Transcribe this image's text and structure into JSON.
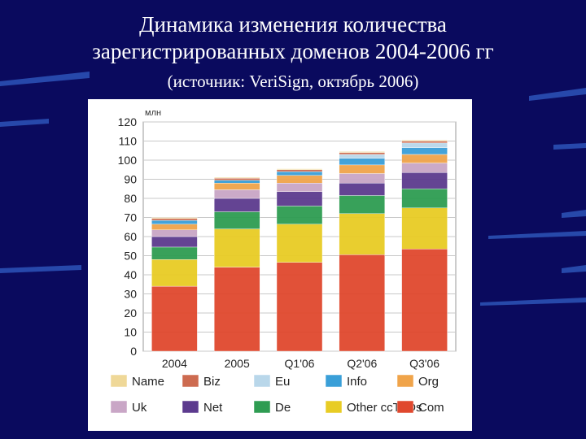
{
  "slide": {
    "title_line1": "Динамика изменения количества",
    "title_line2": "зарегистрированных доменов 2004-2006 гг",
    "source": "(источник: VeriSign, октябрь 2006)"
  },
  "chart_data": {
    "type": "bar",
    "stacked": true,
    "unit_label": "млн",
    "categories": [
      "2004",
      "2005",
      "Q1'06",
      "Q2'06",
      "Q3'06"
    ],
    "ylim": [
      0,
      120
    ],
    "yticks": [
      0,
      10,
      20,
      30,
      40,
      50,
      60,
      70,
      80,
      90,
      100,
      110,
      120
    ],
    "grid": true,
    "legend_position": "bottom",
    "series": [
      {
        "name": "Com",
        "color": "#e0482e",
        "values": [
          34,
          44,
          46.5,
          50.5,
          53.5
        ]
      },
      {
        "name": "Other ccTLDs",
        "color": "#e8cc24",
        "values": [
          14,
          20,
          20,
          21.5,
          21.5
        ]
      },
      {
        "name": "De",
        "color": "#2e9c52",
        "values": [
          6.5,
          9,
          9.5,
          9.5,
          10
        ]
      },
      {
        "name": "Net",
        "color": "#5c3a8e",
        "values": [
          5.5,
          7,
          7.5,
          6.5,
          8.5
        ]
      },
      {
        "name": "Uk",
        "color": "#c9a6c6",
        "values": [
          3.5,
          4.5,
          4.5,
          5,
          5
        ]
      },
      {
        "name": "Org",
        "color": "#f0a44a",
        "values": [
          3,
          3.5,
          4,
          4.5,
          4.5
        ]
      },
      {
        "name": "Info",
        "color": "#3a9fd8",
        "values": [
          2,
          1.5,
          2,
          3.5,
          3.5
        ]
      },
      {
        "name": "Eu",
        "color": "#b9d7ea",
        "values": [
          0,
          0,
          0,
          2,
          2.5
        ]
      },
      {
        "name": "Biz",
        "color": "#cd6b50",
        "values": [
          1,
          1,
          1,
          1,
          1
        ]
      },
      {
        "name": "Name",
        "color": "#efd898",
        "values": [
          0.5,
          0.5,
          0.5,
          0.5,
          0.5
        ]
      }
    ],
    "legend_rows": [
      [
        "Name",
        "Biz",
        "Eu",
        "Info",
        "Org"
      ],
      [
        "Uk",
        "Net",
        "De",
        "Other ccTLDs",
        "Com"
      ]
    ]
  }
}
